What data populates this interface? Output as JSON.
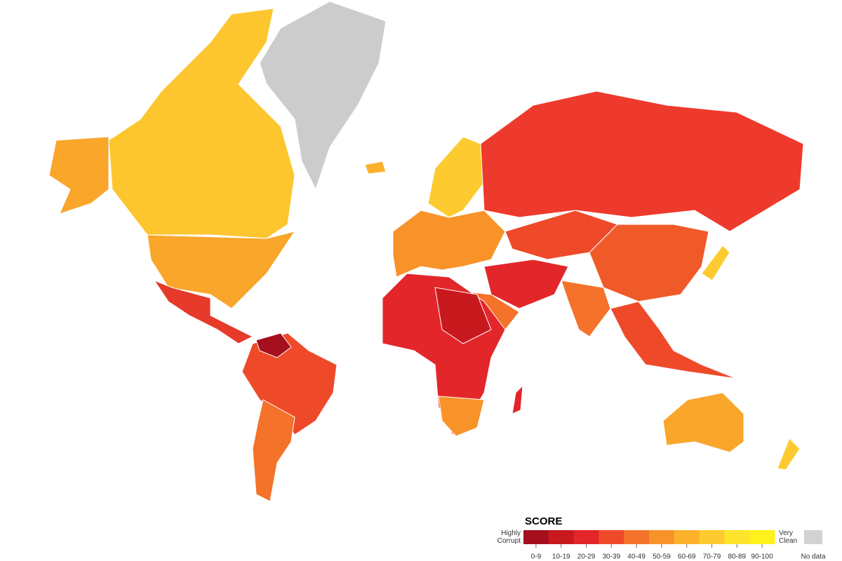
{
  "legend": {
    "title": "SCORE",
    "low_label": "Highly Corrupt",
    "high_label": "Very Clean",
    "bins": [
      {
        "label": "0-9",
        "color": "#a50f1e"
      },
      {
        "label": "10-19",
        "color": "#c8191e"
      },
      {
        "label": "20-29",
        "color": "#e3262a"
      },
      {
        "label": "30-39",
        "color": "#ee4a2a"
      },
      {
        "label": "40-49",
        "color": "#f4722a"
      },
      {
        "label": "50-59",
        "color": "#f8932a"
      },
      {
        "label": "60-69",
        "color": "#fbb12c"
      },
      {
        "label": "70-79",
        "color": "#fdcb2f"
      },
      {
        "label": "80-89",
        "color": "#fee42a"
      },
      {
        "label": "90-100",
        "color": "#fff21c"
      }
    ],
    "no_data_label": "No data",
    "no_data_color": "#d2d2d2"
  }
}
